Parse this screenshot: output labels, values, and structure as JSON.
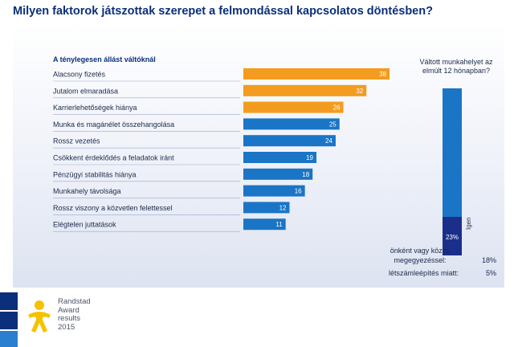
{
  "title": "Milyen faktorok játszottak szerepet a felmondással kapcsolatos döntésben?",
  "chart_data": {
    "type": "bar",
    "orientation": "horizontal",
    "group_label": "A ténylegesen állást váltóknál",
    "categories": [
      "Alacsony fizetés",
      "Jutalom elmaradása",
      "Karrierlehetőségek hiánya",
      "Munka és magánélet összehangolása",
      "Rossz vezetés",
      "Csökkent érdeklődés a feladatok iránt",
      "Pénzügyi stabilitás hiánya",
      "Munkahely távolsága",
      "Rossz viszony a közvetlen felettessel",
      "Elégtelen juttatások"
    ],
    "values": [
      38,
      32,
      26,
      25,
      24,
      19,
      18,
      16,
      12,
      11
    ],
    "highlighted_count": 3,
    "xlim": [
      0,
      38
    ],
    "colors": {
      "highlight": "#f39c1f",
      "normal": "#1a75c6"
    }
  },
  "side_chart": {
    "label": "Váltott munkahelyet az elmúlt 12 hónapban?",
    "yes_label": "Igen",
    "yes_pct": 23,
    "yes_pct_text": "23%",
    "colors": {
      "yes": "#1b2f8a",
      "no": "#1a75c6"
    }
  },
  "reasons": [
    {
      "label": "önként vagy közös megegyezéssel:",
      "pct": "18%"
    },
    {
      "label": "létszámleépítés miatt:",
      "pct": "5%"
    }
  ],
  "award": {
    "line1": "Randstad",
    "line2": "Award",
    "line3": "results",
    "line4": "2015"
  },
  "colors": {
    "title": "#0b2f7a",
    "text": "#1b2a4a",
    "logo_yellow": "#f5c200",
    "logo_blue_dark": "#0b2f7a",
    "logo_blue_light": "#2a7fd0"
  }
}
